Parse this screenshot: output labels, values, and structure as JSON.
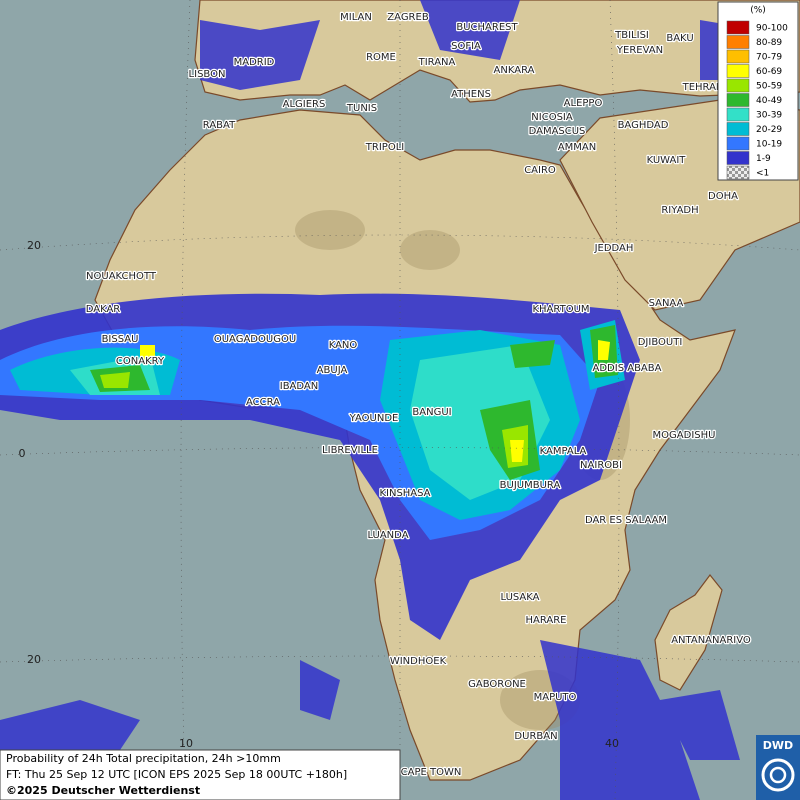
{
  "legend": {
    "title": "(%)",
    "items": [
      {
        "label": "90-100",
        "color": "#c00000"
      },
      {
        "label": "80-89",
        "color": "#ff7f00"
      },
      {
        "label": "70-79",
        "color": "#ffbf00"
      },
      {
        "label": "60-69",
        "color": "#ffff00"
      },
      {
        "label": "50-59",
        "color": "#99e600"
      },
      {
        "label": "40-49",
        "color": "#2eb82e"
      },
      {
        "label": "30-39",
        "color": "#33e0c8"
      },
      {
        "label": "20-29",
        "color": "#00bcd4"
      },
      {
        "label": "10-19",
        "color": "#3377ff"
      },
      {
        "label": "1-9",
        "color": "#3333cc"
      },
      {
        "label": "<1",
        "color": "#bbbbbb"
      }
    ]
  },
  "cities": [
    "MILAN",
    "ZAGREB",
    "BUCHAREST",
    "TBILISI",
    "BAKU",
    "SOFIA",
    "YEREVAN",
    "MADRID",
    "ROME",
    "TIRANA",
    "ANKARA",
    "LISBON",
    "TEHRAN",
    "ATHENS",
    "ALGIERS",
    "TUNIS",
    "ALEPPO",
    "NICOSIA",
    "RABAT",
    "BAGHDAD",
    "DAMASCUS",
    "AMMAN",
    "TRIPOLI",
    "KUWAIT",
    "CAIRO",
    "DOHA",
    "RIYADH",
    "JEDDAH",
    "NOUAKCHOTT",
    "KHARTOUM",
    "SANAA",
    "DAKAR",
    "BISSAU",
    "OUAGADOUGOU",
    "KANO",
    "DJIBOUTI",
    "CONAKRY",
    "ABUJA",
    "ADDIS ABABA",
    "IBADAN",
    "ACCRA",
    "YAOUNDE",
    "BANGUI",
    "MOGADISHU",
    "LIBREVILLE",
    "KAMPALA",
    "NAIROBI",
    "BUJUMBURA",
    "KINSHASA",
    "DAR ES SALAAM",
    "LUANDA",
    "LUSAKA",
    "HARARE",
    "ANTANANARIVO",
    "WINDHOEK",
    "GABORONE",
    "MAPUTO",
    "DURBAN",
    "CAPE TOWN"
  ],
  "grid_labels": [
    "20",
    "0",
    "20",
    "10",
    "40"
  ],
  "footer": {
    "lines": [
      "Probability of 24h Total precipitation, 24h >10mm",
      "FT: Thu 25 Sep 12 UTC [ICON EPS 2025 Sep 18 00UTC +180h]",
      "©2025 Deutscher Wetterdienst"
    ],
    "logo": "DWD"
  }
}
